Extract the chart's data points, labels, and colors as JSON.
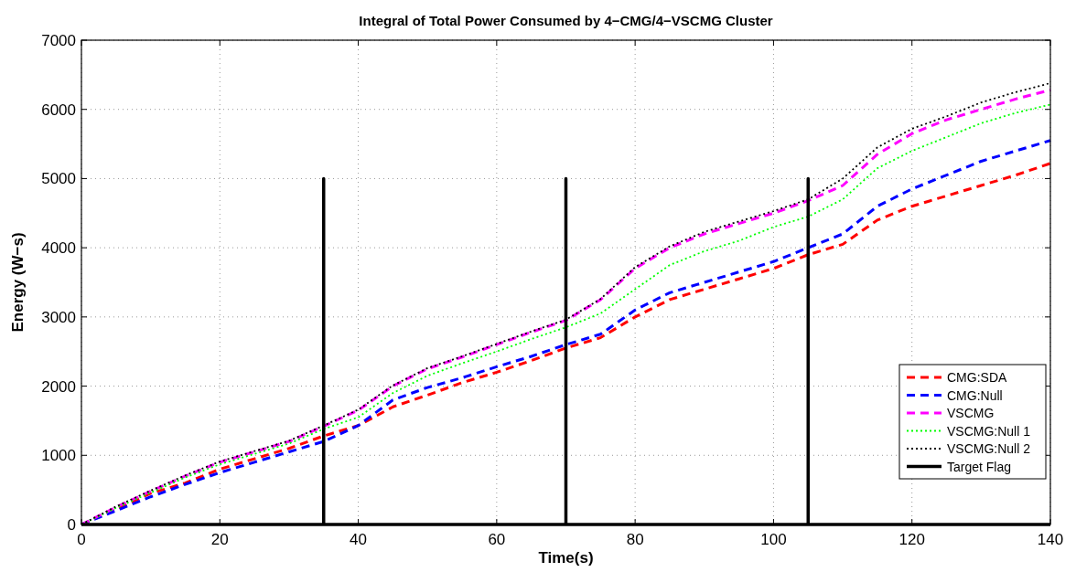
{
  "chart_data": {
    "type": "line",
    "title": "Integral of Total Power Consumed by 4−CMG/4−VSCMG Cluster",
    "xlabel": "Time(s)",
    "ylabel": "Energy (W−s)",
    "x": [
      0,
      5,
      10,
      15,
      20,
      25,
      30,
      35,
      40,
      45,
      50,
      55,
      60,
      65,
      70,
      75,
      80,
      85,
      90,
      95,
      100,
      105,
      110,
      115,
      120,
      125,
      130,
      135,
      140
    ],
    "series": [
      {
        "name": "CMG:SDA",
        "color": "#ff0000",
        "line_style": "dashed",
        "values": [
          0,
          220,
          450,
          600,
          800,
          950,
          1100,
          1280,
          1430,
          1700,
          1870,
          2050,
          2200,
          2370,
          2550,
          2700,
          3000,
          3250,
          3400,
          3550,
          3700,
          3900,
          4050,
          4400,
          4600,
          4750,
          4900,
          5050,
          5220
        ]
      },
      {
        "name": "CMG:Null",
        "color": "#0000ff",
        "line_style": "dashed",
        "values": [
          0,
          200,
          400,
          580,
          750,
          900,
          1050,
          1200,
          1430,
          1800,
          1980,
          2120,
          2280,
          2430,
          2600,
          2750,
          3100,
          3350,
          3500,
          3650,
          3800,
          4000,
          4200,
          4600,
          4850,
          5050,
          5250,
          5400,
          5550
        ]
      },
      {
        "name": "VSCMG",
        "color": "#ff00ff",
        "line_style": "dashed",
        "values": [
          0,
          250,
          480,
          700,
          900,
          1050,
          1200,
          1420,
          1650,
          2000,
          2250,
          2420,
          2600,
          2780,
          2950,
          3250,
          3700,
          4000,
          4200,
          4350,
          4500,
          4680,
          4900,
          5350,
          5650,
          5850,
          6000,
          6150,
          6280
        ]
      },
      {
        "name": "VSCMG:Null 1",
        "color": "#00ff00",
        "line_style": "dotted",
        "values": [
          0,
          240,
          460,
          680,
          870,
          1020,
          1170,
          1380,
          1550,
          1900,
          2150,
          2330,
          2500,
          2680,
          2850,
          3050,
          3400,
          3750,
          3950,
          4100,
          4300,
          4450,
          4700,
          5150,
          5400,
          5600,
          5800,
          5950,
          6070
        ]
      },
      {
        "name": "VSCMG:Null 2",
        "color": "#000000",
        "line_style": "dotted",
        "values": [
          0,
          260,
          490,
          710,
          910,
          1060,
          1210,
          1430,
          1660,
          2010,
          2260,
          2430,
          2610,
          2790,
          2960,
          3260,
          3720,
          4020,
          4230,
          4380,
          4530,
          4700,
          5000,
          5450,
          5720,
          5900,
          6100,
          6250,
          6380
        ]
      },
      {
        "name": "Target Flag",
        "color": "#000000",
        "line_style": "solid",
        "x": [
          0,
          35,
          35,
          35,
          70,
          70,
          70,
          105,
          105,
          105,
          140
        ],
        "values": [
          0,
          0,
          5000,
          0,
          0,
          5000,
          0,
          0,
          5000,
          0,
          0
        ]
      }
    ],
    "xlim": [
      0,
      140
    ],
    "xticks": [
      0,
      20,
      40,
      60,
      80,
      100,
      120,
      140
    ],
    "ylim": [
      0,
      7000
    ],
    "yticks": [
      0,
      1000,
      2000,
      3000,
      4000,
      5000,
      6000,
      7000
    ],
    "grid": true,
    "legend": "bottom right"
  }
}
